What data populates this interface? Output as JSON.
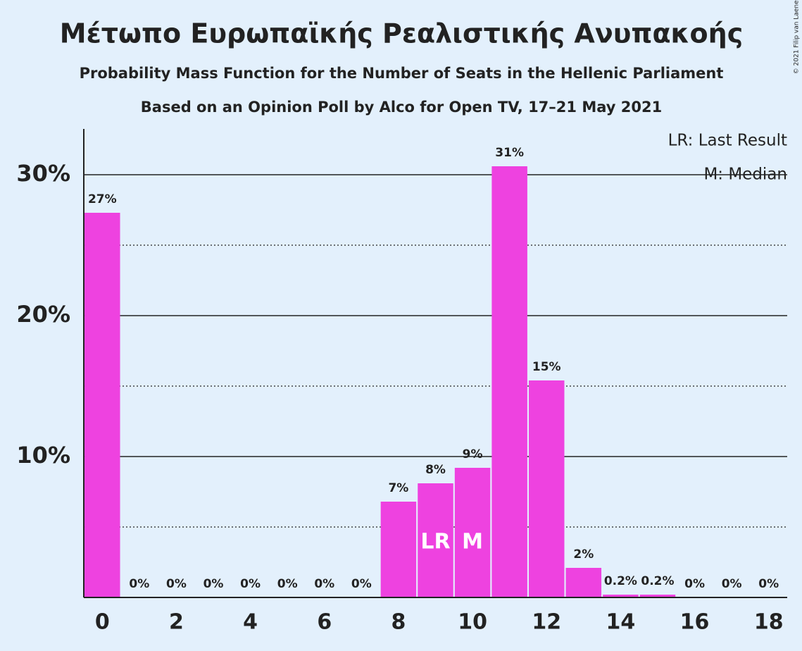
{
  "chart_data": {
    "type": "bar",
    "title": "Μέτωπο Ευρωπαϊκής Ρεαλιστικής Ανυπακοής",
    "subtitle": "Probability Mass Function for the Number of Seats in the Hellenic Parliament",
    "subtitle2": "Based on an Opinion Poll by Alco for Open TV, 17–21 May 2021",
    "copyright": "© 2021 Filip van Laenen",
    "x": [
      0,
      1,
      2,
      3,
      4,
      5,
      6,
      7,
      8,
      9,
      10,
      11,
      12,
      13,
      14,
      15,
      16,
      17,
      18
    ],
    "values": [
      27.3,
      0,
      0,
      0,
      0,
      0,
      0,
      0,
      6.8,
      8.1,
      9.2,
      30.6,
      15.4,
      2.1,
      0.2,
      0.2,
      0,
      0,
      0
    ],
    "value_labels": [
      "27%",
      "0%",
      "0%",
      "0%",
      "0%",
      "0%",
      "0%",
      "0%",
      "7%",
      "8%",
      "9%",
      "31%",
      "15%",
      "2%",
      "0.2%",
      "0.2%",
      "0%",
      "0%",
      "0%"
    ],
    "color": "#ee42e0",
    "xlim": [
      -0.5,
      18.5
    ],
    "xticks": [
      0,
      2,
      4,
      6,
      8,
      10,
      12,
      14,
      16,
      18
    ],
    "ylim": [
      0,
      33.25
    ],
    "yticks": [
      {
        "value": 10,
        "label": "10%"
      },
      {
        "value": 20,
        "label": "20%"
      },
      {
        "value": 30,
        "label": "30%"
      }
    ],
    "minor_yticks": [
      5,
      15,
      25
    ],
    "grid": true,
    "annotations": [
      {
        "x": 9,
        "text": "LR"
      },
      {
        "x": 10,
        "text": "M"
      }
    ],
    "legend": [
      "LR: Last Result",
      "M: Median"
    ]
  }
}
